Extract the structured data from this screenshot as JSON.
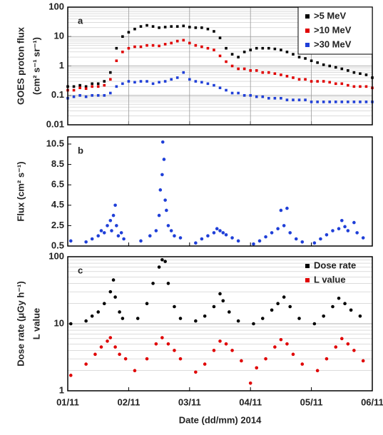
{
  "chart_data": [
    {
      "type": "scatter",
      "panel_label": "a",
      "ylabel": [
        "GOES proton flux",
        "(cm² s⁻¹ sr⁻¹)"
      ],
      "log_y": true,
      "grid": "both",
      "legend": "upper right",
      "legend_box": true,
      "ylim": [
        0.01,
        100
      ],
      "yticks": [
        0.01,
        0.1,
        1,
        10,
        100
      ],
      "xlim": [
        1,
        6
      ],
      "xticks": [
        1,
        2,
        3,
        4,
        5,
        6
      ],
      "x": [
        1.0,
        1.1,
        1.2,
        1.3,
        1.4,
        1.5,
        1.6,
        1.7,
        1.8,
        1.9,
        2.0,
        2.1,
        2.2,
        2.3,
        2.4,
        2.5,
        2.6,
        2.7,
        2.8,
        2.9,
        3.0,
        3.1,
        3.2,
        3.3,
        3.4,
        3.5,
        3.6,
        3.7,
        3.8,
        3.9,
        4.0,
        4.1,
        4.2,
        4.3,
        4.4,
        4.5,
        4.6,
        4.7,
        4.8,
        4.9,
        5.0,
        5.1,
        5.2,
        5.3,
        5.4,
        5.5,
        5.6,
        5.7,
        5.8,
        5.9,
        6.0
      ],
      "series": [
        {
          "name": ">5 MeV",
          "color": "#000000",
          "values": [
            0.2,
            0.2,
            0.22,
            0.2,
            0.25,
            0.25,
            0.3,
            0.6,
            4,
            10,
            14,
            18,
            22,
            24,
            22,
            20,
            21,
            22,
            22,
            23,
            21,
            20,
            20,
            18,
            15,
            9,
            4,
            2.5,
            2,
            3,
            3.5,
            4,
            4,
            4,
            3.8,
            3.5,
            3,
            2.5,
            2,
            1.8,
            1.5,
            1.3,
            1.1,
            1,
            0.9,
            0.8,
            0.7,
            0.6,
            0.55,
            0.5,
            0.4
          ]
        },
        {
          "name": ">10 MeV",
          "color": "#e00000",
          "values": [
            0.15,
            0.15,
            0.18,
            0.17,
            0.2,
            0.2,
            0.22,
            0.35,
            1.5,
            3,
            4,
            4.5,
            4.5,
            5,
            5,
            4.8,
            5.5,
            6,
            7,
            7.5,
            6,
            5,
            4.5,
            4,
            3.5,
            2.2,
            1.4,
            1,
            0.8,
            0.8,
            0.7,
            0.7,
            0.6,
            0.6,
            0.55,
            0.5,
            0.45,
            0.4,
            0.35,
            0.35,
            0.3,
            0.3,
            0.3,
            0.28,
            0.25,
            0.25,
            0.22,
            0.2,
            0.2,
            0.2,
            0.18
          ]
        },
        {
          "name": ">30 MeV",
          "color": "#1f3fd8",
          "values": [
            0.08,
            0.09,
            0.1,
            0.09,
            0.1,
            0.1,
            0.1,
            0.12,
            0.2,
            0.25,
            0.3,
            0.28,
            0.3,
            0.3,
            0.25,
            0.28,
            0.3,
            0.35,
            0.4,
            0.6,
            0.35,
            0.3,
            0.28,
            0.25,
            0.22,
            0.18,
            0.15,
            0.12,
            0.12,
            0.1,
            0.1,
            0.09,
            0.09,
            0.08,
            0.08,
            0.08,
            0.07,
            0.07,
            0.07,
            0.07,
            0.06,
            0.06,
            0.06,
            0.06,
            0.06,
            0.06,
            0.06,
            0.06,
            0.06,
            0.06,
            0.06
          ]
        }
      ]
    },
    {
      "type": "scatter",
      "panel_label": "b",
      "ylabel": [
        "Flux (cm² s⁻¹)"
      ],
      "log_y": false,
      "grid": false,
      "ylim": [
        0.5,
        11.2
      ],
      "yticks": [
        0.5,
        2.5,
        4.5,
        6.5,
        8.5,
        10.5
      ],
      "xlim": [
        1,
        6
      ],
      "xticks": [
        1,
        2,
        3,
        4,
        5,
        6
      ],
      "series": [
        {
          "color": "#1f3fd8",
          "x": [
            1.05,
            1.3,
            1.4,
            1.5,
            1.55,
            1.6,
            1.65,
            1.7,
            1.72,
            1.75,
            1.78,
            1.8,
            1.83,
            1.88,
            1.92,
            2.2,
            2.35,
            2.45,
            2.5,
            2.52,
            2.55,
            2.56,
            2.58,
            2.6,
            2.62,
            2.65,
            2.7,
            2.75,
            2.85,
            3.1,
            3.2,
            3.3,
            3.4,
            3.45,
            3.5,
            3.55,
            3.6,
            3.7,
            3.8,
            4.05,
            4.15,
            4.25,
            4.35,
            4.45,
            4.5,
            4.55,
            4.6,
            4.65,
            4.75,
            4.85,
            5.05,
            5.15,
            5.25,
            5.35,
            5.45,
            5.5,
            5.55,
            5.6,
            5.7,
            5.75,
            5.85
          ],
          "values": [
            1.0,
            0.9,
            1.2,
            1.5,
            2.0,
            1.8,
            2.5,
            3.0,
            2.0,
            3.5,
            4.5,
            2.5,
            1.5,
            1.8,
            1.2,
            1.0,
            1.5,
            2.0,
            3.5,
            6.0,
            7.5,
            10.7,
            9.0,
            5.0,
            4.0,
            2.5,
            2.0,
            1.5,
            1.3,
            0.8,
            1.2,
            1.5,
            1.8,
            2.2,
            2.0,
            1.8,
            1.6,
            1.3,
            1.0,
            0.7,
            1.0,
            1.4,
            1.8,
            2.2,
            4.0,
            2.5,
            4.2,
            1.8,
            1.2,
            0.9,
            0.8,
            1.2,
            1.6,
            2.0,
            2.2,
            3.0,
            2.4,
            2.0,
            2.8,
            1.8,
            1.3
          ]
        }
      ]
    },
    {
      "type": "scatter",
      "panel_label": "c",
      "ylabel": [
        "Dose rate (μGy h⁻¹)",
        "L value"
      ],
      "log_y": true,
      "grid": "y",
      "legend": "upper right",
      "legend_box": false,
      "ylim": [
        1,
        100
      ],
      "yticks": [
        1,
        10,
        100
      ],
      "xlim": [
        1,
        6
      ],
      "xticks": [
        {
          "value": 1,
          "label": "01/11"
        },
        {
          "value": 2,
          "label": "02/11"
        },
        {
          "value": 3,
          "label": "03/11"
        },
        {
          "value": 4,
          "label": "04/11"
        },
        {
          "value": 5,
          "label": "05/11"
        },
        {
          "value": 6,
          "label": "06/11"
        }
      ],
      "xlabel": "Date (dd/mm) 2014",
      "series": [
        {
          "name": "Dose rate",
          "color": "#000000",
          "x": [
            1.05,
            1.3,
            1.4,
            1.5,
            1.6,
            1.7,
            1.75,
            1.78,
            1.85,
            1.9,
            2.15,
            2.3,
            2.4,
            2.5,
            2.55,
            2.6,
            2.65,
            2.75,
            2.85,
            3.1,
            3.25,
            3.4,
            3.5,
            3.55,
            3.65,
            3.8,
            4.05,
            4.2,
            4.35,
            4.45,
            4.55,
            4.65,
            4.8,
            5.05,
            5.2,
            5.35,
            5.45,
            5.55,
            5.65,
            5.8
          ],
          "values": [
            10,
            11,
            13,
            15,
            20,
            30,
            45,
            25,
            15,
            12,
            12,
            20,
            40,
            70,
            90,
            85,
            40,
            18,
            12,
            11,
            13,
            18,
            28,
            22,
            15,
            11,
            10,
            12,
            16,
            20,
            25,
            18,
            12,
            10,
            13,
            18,
            24,
            20,
            16,
            13
          ]
        },
        {
          "name": "L value",
          "color": "#e00000",
          "x": [
            1.05,
            1.3,
            1.45,
            1.55,
            1.65,
            1.7,
            1.78,
            1.85,
            1.95,
            2.1,
            2.3,
            2.45,
            2.55,
            2.65,
            2.75,
            2.85,
            3.1,
            3.25,
            3.4,
            3.5,
            3.6,
            3.7,
            3.85,
            4.0,
            4.1,
            4.25,
            4.4,
            4.5,
            4.6,
            4.7,
            4.85,
            5.1,
            5.25,
            5.4,
            5.5,
            5.6,
            5.7,
            5.85
          ],
          "values": [
            1.7,
            2.5,
            3.5,
            4.5,
            5.5,
            6.2,
            4.5,
            3.5,
            3,
            2.0,
            3,
            5,
            6.2,
            5,
            4,
            3,
            1.9,
            2.5,
            4,
            5.5,
            5,
            4,
            2.8,
            1.3,
            2.2,
            3,
            4.5,
            5.8,
            5,
            3.5,
            2.5,
            2.0,
            3,
            4.5,
            6,
            5,
            4,
            2.8
          ]
        }
      ]
    }
  ]
}
